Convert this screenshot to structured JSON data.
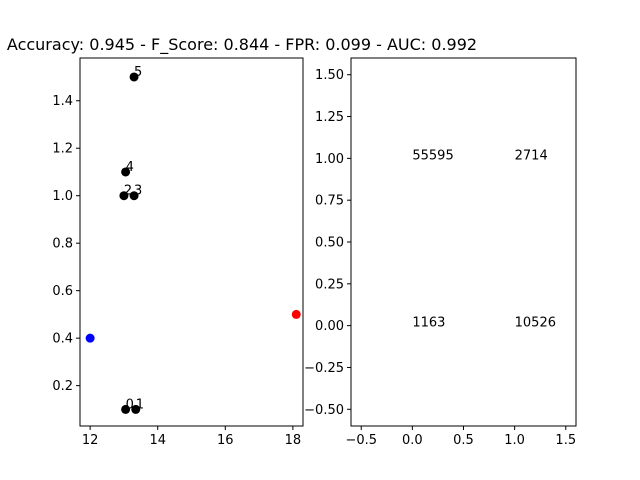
{
  "chart_data": [
    {
      "type": "scatter",
      "title": "Accuracy: 0.945 - F_Score: 0.844 - FPR: 0.099 - AUC: 0.992",
      "xlim": [
        11.7,
        18.3
      ],
      "ylim": [
        0.03,
        1.58
      ],
      "xticks": [
        "12",
        "14",
        "16",
        "18"
      ],
      "yticks": [
        "0.2",
        "0.4",
        "0.6",
        "0.8",
        "1.0",
        "1.2",
        "1.4"
      ],
      "grid": false,
      "series": [
        {
          "color": "#000000",
          "points": [
            {
              "x": 13.05,
              "y": 0.1,
              "label": "0"
            },
            {
              "x": 13.35,
              "y": 0.1,
              "label": "1"
            },
            {
              "x": 13.0,
              "y": 1.0,
              "label": "2"
            },
            {
              "x": 13.3,
              "y": 1.0,
              "label": "3"
            },
            {
              "x": 13.05,
              "y": 1.1,
              "label": "4"
            },
            {
              "x": 13.3,
              "y": 1.5,
              "label": "5"
            }
          ]
        },
        {
          "color": "#0000ff",
          "points": [
            {
              "x": 12.0,
              "y": 0.4,
              "label": ""
            }
          ]
        },
        {
          "color": "#ff0000",
          "points": [
            {
              "x": 18.1,
              "y": 0.5,
              "label": ""
            }
          ]
        }
      ]
    },
    {
      "type": "table",
      "xlim": [
        -0.6,
        1.6
      ],
      "ylim": [
        -0.6,
        1.6
      ],
      "xticks": [
        "−0.5",
        "0.0",
        "0.5",
        "1.0",
        "1.5"
      ],
      "yticks": [
        "−0.50",
        "−0.25",
        "0.00",
        "0.25",
        "0.50",
        "0.75",
        "1.00",
        "1.25",
        "1.50"
      ],
      "grid": false,
      "cells": [
        {
          "x": 0,
          "y": 1,
          "text": "55595"
        },
        {
          "x": 1,
          "y": 1,
          "text": "2714"
        },
        {
          "x": 0,
          "y": 0,
          "text": "1163"
        },
        {
          "x": 1,
          "y": 0,
          "text": "10526"
        }
      ]
    }
  ]
}
